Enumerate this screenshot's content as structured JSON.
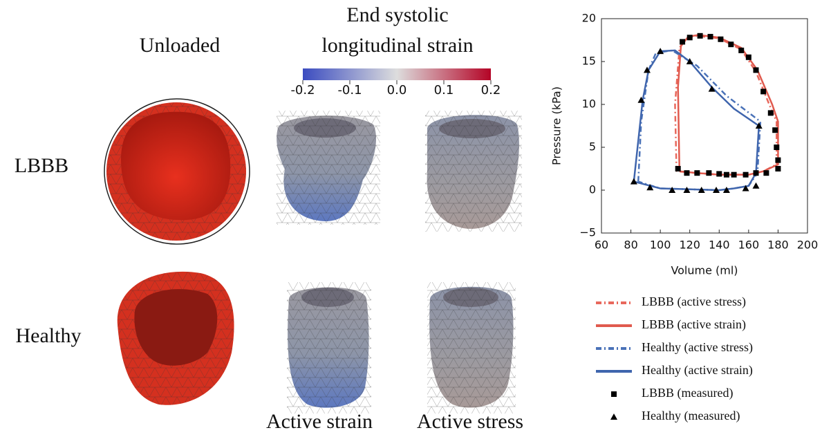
{
  "figure": {
    "column_title": "Unloaded",
    "strain_title": [
      "End systolic",
      "longitudinal strain"
    ],
    "colorbar": {
      "colors": [
        "#3b4cc0",
        "#dddddd",
        "#b40426"
      ],
      "lim": [
        -0.2,
        0.2
      ],
      "ticks": [
        {
          "value": -0.2,
          "label": "-0.2"
        },
        {
          "value": -0.1,
          "label": "-0.1"
        },
        {
          "value": 0,
          "label": "0.0"
        },
        {
          "value": 0.1,
          "label": "0.1"
        },
        {
          "value": 0.2,
          "label": "0.2"
        }
      ]
    },
    "row_labels": [
      "LBBB",
      "Healthy"
    ],
    "column_labels": [
      "Active strain",
      "Active stress"
    ]
  },
  "chart_data": {
    "type": "line",
    "x_label": "Volume (ml)",
    "y_label": "Pressure (kPa)",
    "xlim": [
      60,
      200
    ],
    "xticks": [
      60,
      80,
      100,
      120,
      140,
      160,
      180,
      200
    ],
    "ylim": [
      -5,
      20
    ],
    "yticks": [
      {
        "value": -5,
        "label": "−5"
      },
      0,
      5,
      10,
      15,
      20
    ],
    "series": [
      {
        "name": "LBBB (active stress)",
        "color": "#e8685c",
        "style": "dashdot",
        "x": [
          111,
          110,
          113,
          118,
          125,
          140,
          155,
          165,
          174,
          179,
          179,
          170,
          160,
          140,
          125,
          111
        ],
        "values": [
          2.2,
          10,
          16.6,
          17.8,
          18,
          17.7,
          16.4,
          13.8,
          10,
          8,
          3,
          2.2,
          1.8,
          1.8,
          2,
          2.2
        ]
      },
      {
        "name": "LBBB (active strain)",
        "color": "#e05a4e",
        "style": "solid",
        "x": [
          113,
          112,
          114,
          119,
          126,
          140,
          155,
          166,
          176,
          180,
          180,
          170,
          160,
          140,
          125,
          113
        ],
        "values": [
          2.2,
          12,
          16.8,
          17.9,
          18.1,
          17.8,
          16.6,
          14,
          10,
          8,
          3,
          2.2,
          1.8,
          1.8,
          2,
          2.2
        ]
      },
      {
        "name": "Healthy (active stress)",
        "color": "#4a72b8",
        "style": "dashdot",
        "x": [
          85,
          87,
          92,
          97,
          108,
          125,
          145,
          168,
          166,
          160,
          150,
          140,
          120,
          100,
          85
        ],
        "values": [
          1,
          8,
          14,
          16,
          16.3,
          14.5,
          11,
          8,
          2,
          0.5,
          0.2,
          0,
          0.1,
          0.2,
          1
        ]
      },
      {
        "name": "Healthy (active strain)",
        "color": "#3f65ad",
        "style": "solid",
        "x": [
          82,
          88,
          92,
          100,
          110,
          120,
          135,
          150,
          167,
          165,
          160,
          150,
          140,
          120,
          100,
          82
        ],
        "values": [
          1,
          10.5,
          14,
          16.2,
          16.3,
          15,
          12,
          9.5,
          7.5,
          2,
          0.5,
          0.2,
          0,
          0.1,
          0.2,
          1
        ]
      },
      {
        "name": "LBBB (measured)",
        "color": "#000000",
        "style": "square",
        "x": [
          112,
          115,
          120,
          127,
          134,
          141,
          148,
          155,
          160,
          165,
          170,
          175,
          178,
          179,
          180,
          180,
          172,
          165,
          158,
          150,
          145,
          140,
          133,
          125,
          118
        ],
        "values": [
          2.5,
          17.3,
          17.8,
          18,
          17.9,
          17.6,
          17,
          16.3,
          15.5,
          14,
          11.5,
          9,
          7,
          5,
          3.5,
          2.5,
          2,
          2,
          1.8,
          1.8,
          1.8,
          1.9,
          2,
          2,
          2
        ]
      },
      {
        "name": "Healthy (measured)",
        "color": "#000000",
        "style": "triangle",
        "x": [
          82,
          87,
          91,
          100,
          120,
          135,
          167,
          165,
          158,
          145,
          138,
          128,
          118,
          108,
          93
        ],
        "values": [
          1,
          10.5,
          14,
          16.2,
          15,
          11.8,
          7.5,
          0.5,
          0.2,
          0,
          0,
          0,
          0,
          0,
          0.3
        ]
      }
    ]
  }
}
